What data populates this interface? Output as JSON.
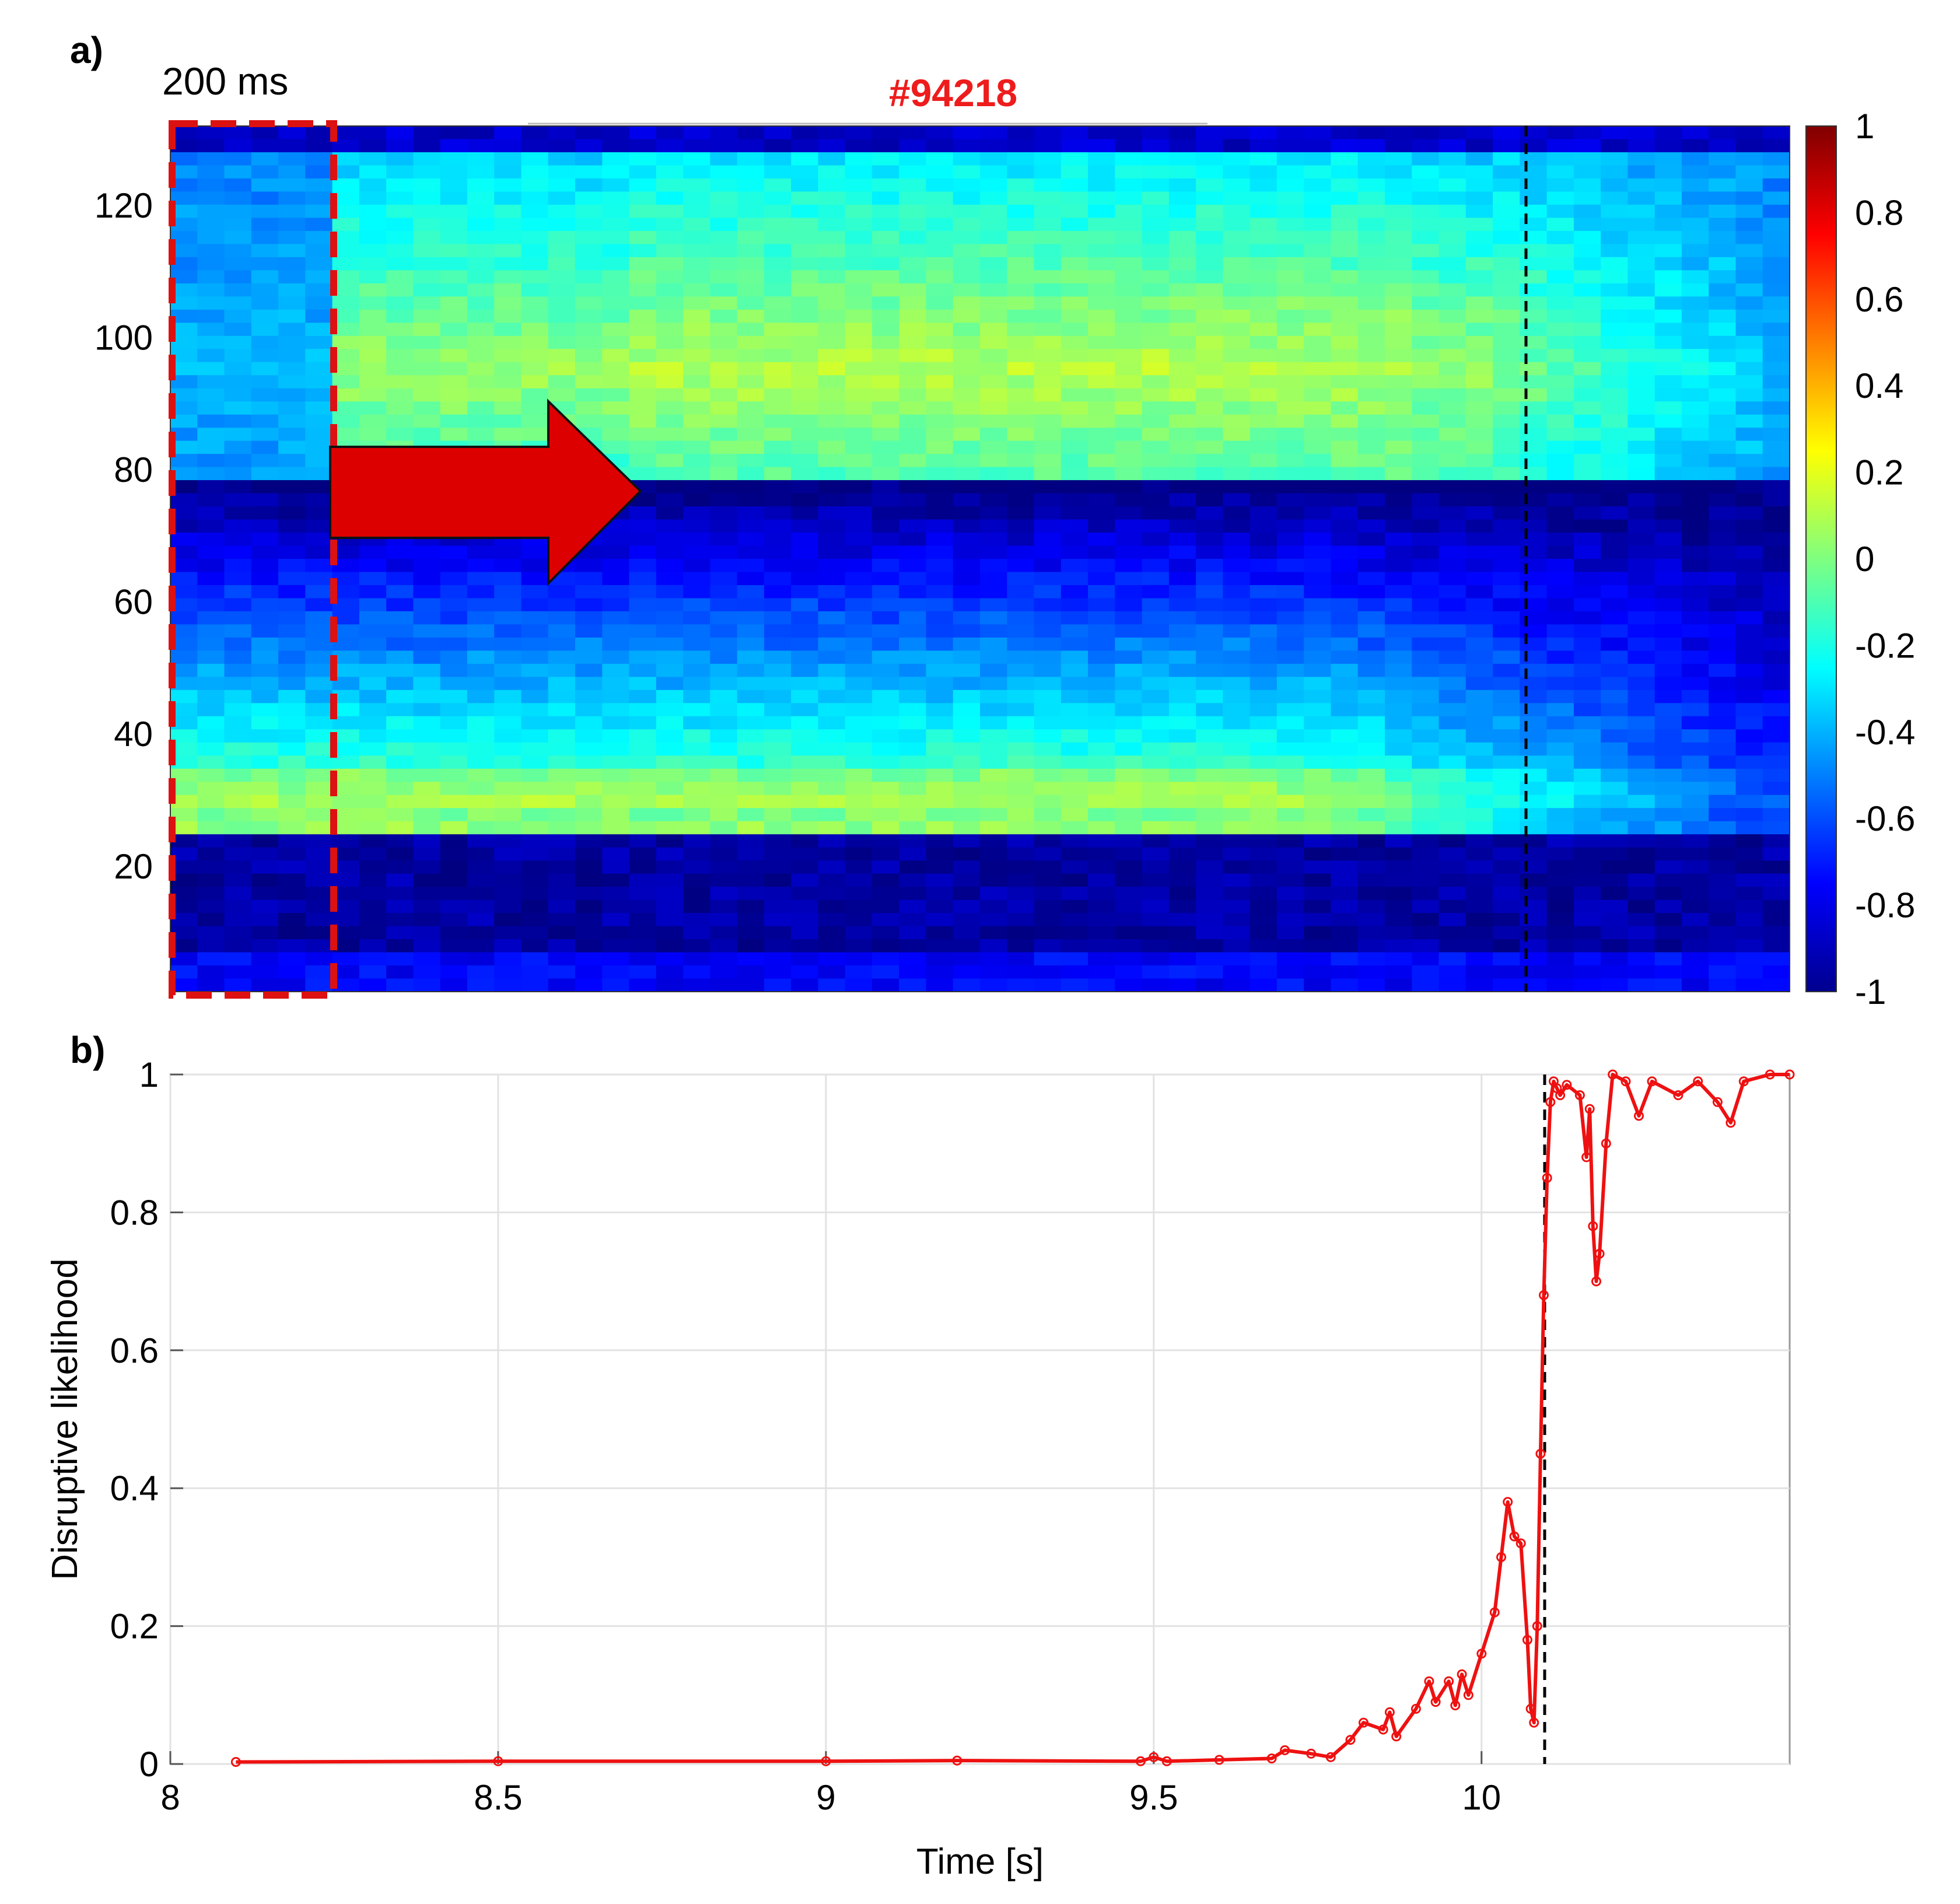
{
  "chart_data": [
    {
      "type": "heatmap",
      "panel_label": "a)",
      "title": "#94218",
      "annotation_window": "200 ms",
      "xlim": [
        8,
        10.47
      ],
      "ylim": [
        1,
        132
      ],
      "yticks": [
        "20",
        "40",
        "60",
        "80",
        "100",
        "120"
      ],
      "colorbar": {
        "range": [
          -1,
          1
        ],
        "ticks": [
          "1",
          "0.8",
          "0.6",
          "0.4",
          "0.2",
          "0",
          "-0.2",
          "-0.4",
          "-0.6",
          "-0.8",
          "-1"
        ]
      },
      "disruption_marker_time": 10.09,
      "regions": [
        {
          "name": "upper-channels",
          "y_range": [
            78,
            132
          ],
          "pattern": "warm (about -0.2 to 0.1), strongest near 90-100, cooling after 10 s"
        },
        {
          "name": "middle-channels",
          "y_range": [
            25,
            78
          ],
          "pattern": "cold near 78 rising to warm band near 30, cooling after 10 s"
        },
        {
          "name": "lower-channels",
          "y_range": [
            1,
            25
          ],
          "pattern": "near -1 with sparse spikes"
        }
      ],
      "arrow": "prediction direction"
    },
    {
      "type": "line",
      "panel_label": "b)",
      "xlabel": "Time [s]",
      "ylabel": "Disruptive likelihood",
      "xlim": [
        8,
        10.47
      ],
      "ylim": [
        0,
        1
      ],
      "xticks": [
        "8",
        "8.5",
        "9",
        "9.5",
        "10"
      ],
      "yticks": [
        "0",
        "0.2",
        "0.4",
        "0.6",
        "0.8",
        "1"
      ],
      "disruption_marker_time": 10.1,
      "color": "#ee1111",
      "series": [
        {
          "name": "Disruptive likelihood",
          "x": [
            8.1,
            8.5,
            9.0,
            9.2,
            9.48,
            9.5,
            9.52,
            9.6,
            9.68,
            9.7,
            9.74,
            9.77,
            9.8,
            9.82,
            9.85,
            9.86,
            9.87,
            9.9,
            9.92,
            9.93,
            9.95,
            9.96,
            9.97,
            9.98,
            10.0,
            10.02,
            10.03,
            10.04,
            10.05,
            10.06,
            10.07,
            10.075,
            10.08,
            10.085,
            10.09,
            10.095,
            10.1,
            10.105,
            10.11,
            10.115,
            10.12,
            10.13,
            10.15,
            10.16,
            10.165,
            10.17,
            10.175,
            10.18,
            10.19,
            10.2,
            10.22,
            10.24,
            10.26,
            10.3,
            10.33,
            10.36,
            10.38,
            10.4,
            10.44,
            10.47
          ],
          "values": [
            0.003,
            0.004,
            0.004,
            0.005,
            0.004,
            0.01,
            0.004,
            0.006,
            0.008,
            0.02,
            0.015,
            0.01,
            0.035,
            0.06,
            0.05,
            0.075,
            0.04,
            0.08,
            0.12,
            0.09,
            0.12,
            0.085,
            0.13,
            0.1,
            0.16,
            0.22,
            0.3,
            0.38,
            0.33,
            0.32,
            0.18,
            0.08,
            0.06,
            0.2,
            0.45,
            0.68,
            0.85,
            0.96,
            0.99,
            0.98,
            0.97,
            0.985,
            0.97,
            0.88,
            0.95,
            0.78,
            0.7,
            0.74,
            0.9,
            1.0,
            0.99,
            0.94,
            0.99,
            0.97,
            0.99,
            0.96,
            0.93,
            0.99,
            1.0,
            1.0
          ]
        }
      ]
    }
  ]
}
